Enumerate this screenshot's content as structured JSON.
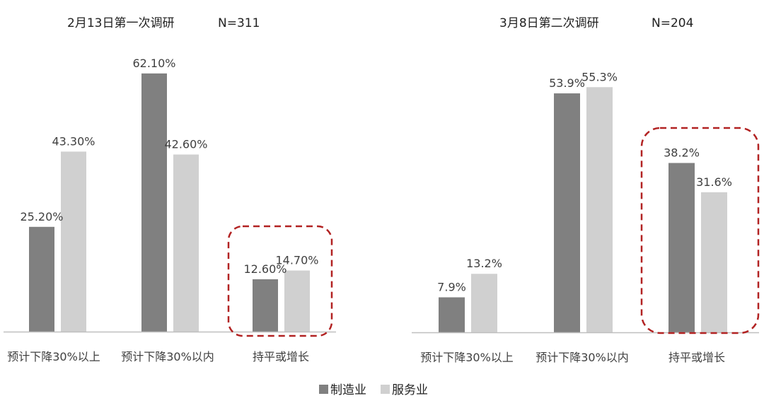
{
  "colors": {
    "manufacturing": "#808080",
    "services": "#d0d0d0",
    "highlight": "#b22222",
    "axis": "#bfbfbf"
  },
  "legend": {
    "manufacturing": "制造业",
    "services": "服务业"
  },
  "chart_data": [
    {
      "type": "bar",
      "title": "2月13日第一次调研",
      "sample": "N=311",
      "categories": [
        "预计下降30%以上",
        "预计下降30%以内",
        "持平或增长"
      ],
      "series": [
        {
          "name": "制造业",
          "values": [
            25.2,
            62.1,
            12.6
          ],
          "labels": [
            "25.20%",
            "62.10%",
            "12.60%"
          ]
        },
        {
          "name": "服务业",
          "values": [
            43.3,
            42.6,
            14.7
          ],
          "labels": [
            "43.30%",
            "42.60%",
            "14.70%"
          ]
        }
      ],
      "ylim": [
        0,
        65
      ],
      "grid": false,
      "legend": "bottom",
      "highlighted_category": "持平或增长"
    },
    {
      "type": "bar",
      "title": "3月8日第二次调研",
      "sample": "N=204",
      "categories": [
        "预计下降30%以上",
        "预计下降30%以内",
        "持平或增长"
      ],
      "series": [
        {
          "name": "制造业",
          "values": [
            7.9,
            53.9,
            38.2
          ],
          "labels": [
            "7.9%",
            "53.9%",
            "38.2%"
          ]
        },
        {
          "name": "服务业",
          "values": [
            13.2,
            55.3,
            31.6
          ],
          "labels": [
            "13.2%",
            "55.3%",
            "31.6%"
          ]
        }
      ],
      "ylim": [
        0,
        60
      ],
      "grid": false,
      "legend": "bottom",
      "highlighted_category": "持平或增长"
    }
  ]
}
